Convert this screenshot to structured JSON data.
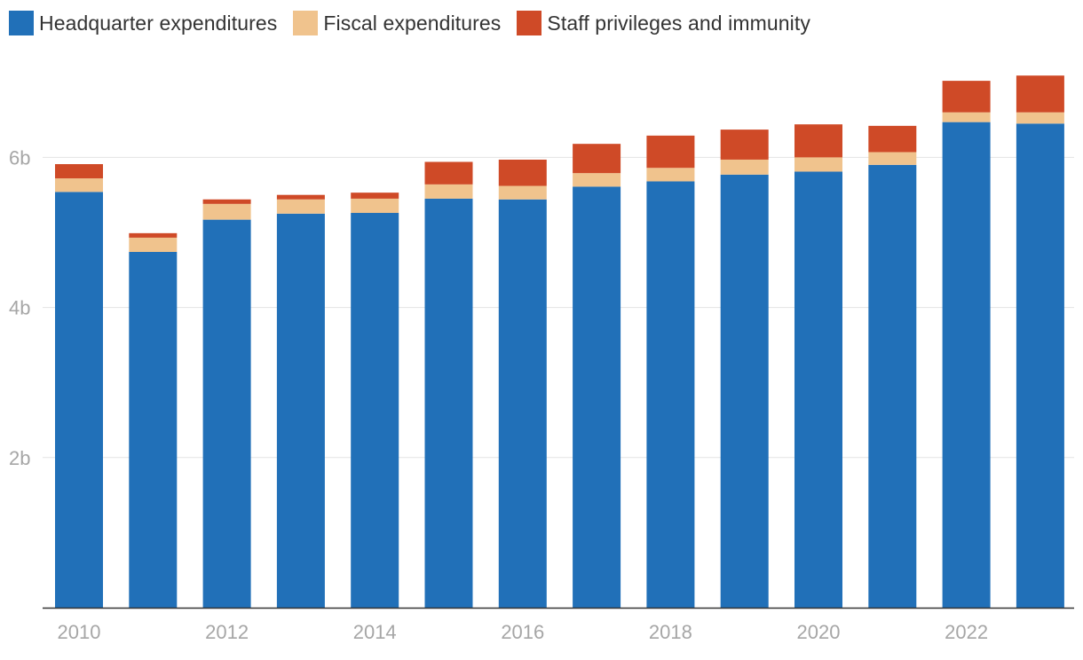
{
  "legend": [
    {
      "label": "Headquarter expenditures",
      "color": "#2170b8"
    },
    {
      "label": "Fiscal expenditures",
      "color": "#f0c38d"
    },
    {
      "label": "Staff privileges and immunity",
      "color": "#cf4a27"
    }
  ],
  "chart_data": {
    "type": "bar",
    "stacked": true,
    "title": "",
    "xlabel": "",
    "ylabel": "",
    "categories": [
      "2010",
      "2011",
      "2012",
      "2013",
      "2014",
      "2015",
      "2016",
      "2017",
      "2018",
      "2019",
      "2020",
      "2021",
      "2022",
      "2023"
    ],
    "x_tick_labels": [
      "2010",
      "2012",
      "2014",
      "2016",
      "2018",
      "2020",
      "2022"
    ],
    "y_ticks": [
      {
        "value": 2,
        "label": "2b"
      },
      {
        "value": 4,
        "label": "4b"
      },
      {
        "value": 6,
        "label": "6b"
      }
    ],
    "ylim": [
      0,
      7.4
    ],
    "grid": true,
    "legend_position": "top-left",
    "series": [
      {
        "name": "Headquarter expenditures",
        "color": "#2170b8",
        "values": [
          5.54,
          4.74,
          5.17,
          5.25,
          5.26,
          5.45,
          5.44,
          5.61,
          5.68,
          5.77,
          5.81,
          5.9,
          6.47,
          6.45
        ]
      },
      {
        "name": "Fiscal expenditures",
        "color": "#f0c38d",
        "values": [
          0.18,
          0.19,
          0.21,
          0.19,
          0.19,
          0.19,
          0.18,
          0.18,
          0.18,
          0.2,
          0.19,
          0.17,
          0.13,
          0.15
        ]
      },
      {
        "name": "Staff privileges and immunity",
        "color": "#cf4a27",
        "values": [
          0.19,
          0.06,
          0.06,
          0.06,
          0.08,
          0.3,
          0.35,
          0.39,
          0.43,
          0.4,
          0.44,
          0.35,
          0.42,
          0.49
        ]
      }
    ]
  }
}
